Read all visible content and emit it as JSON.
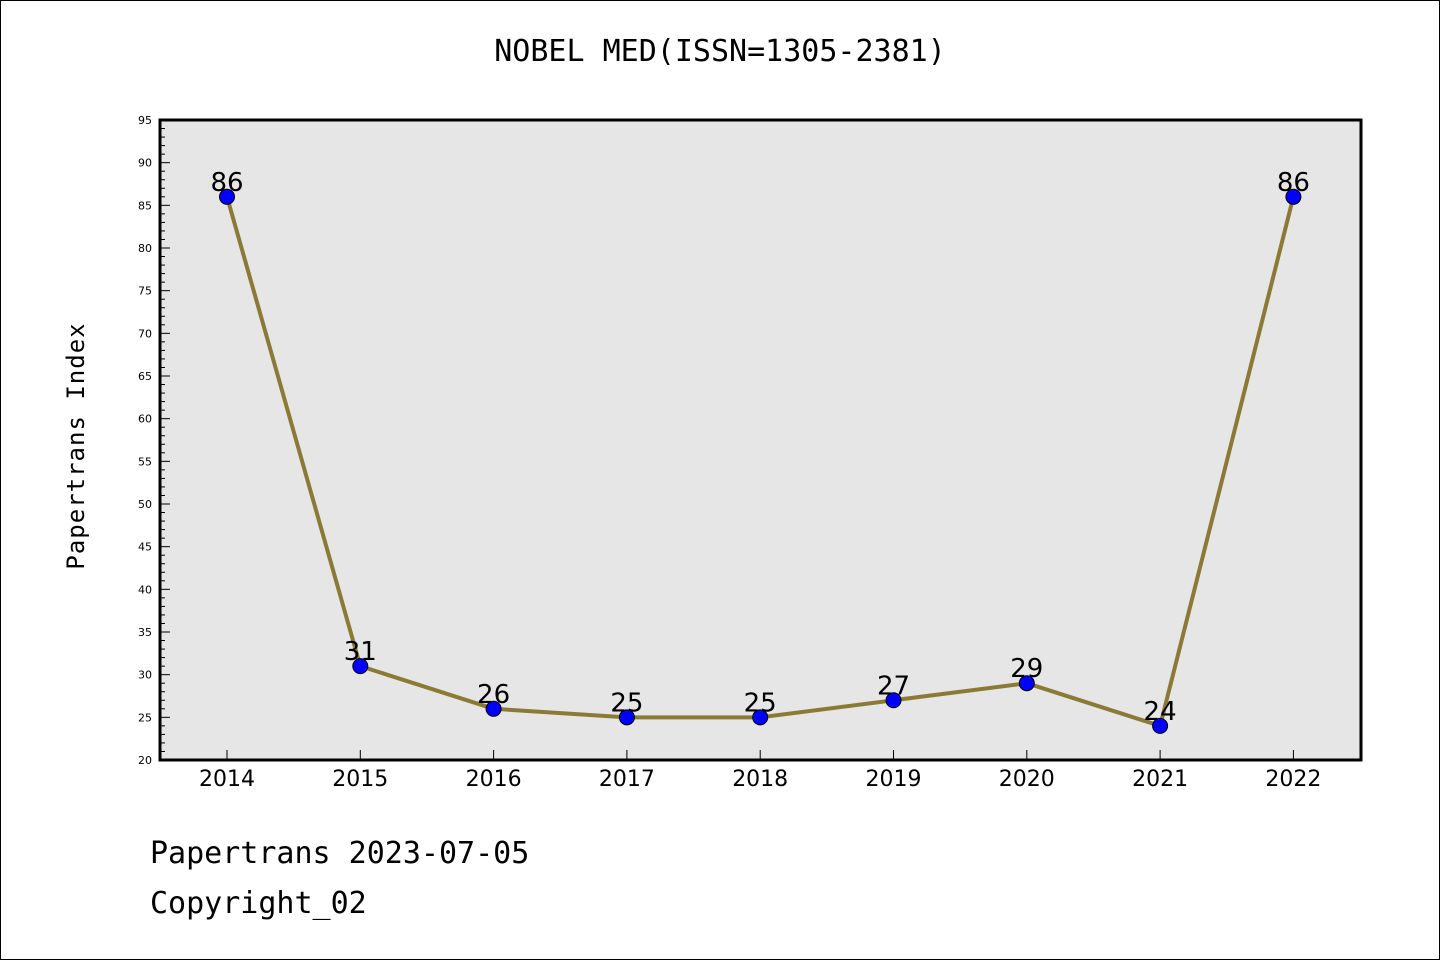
{
  "chart_data": {
    "type": "line",
    "title": "NOBEL MED(ISSN=1305-2381)",
    "xlabel": "",
    "ylabel": "Papertrans Index",
    "categories": [
      "2014",
      "2015",
      "2016",
      "2017",
      "2018",
      "2019",
      "2020",
      "2021",
      "2022"
    ],
    "series": [
      {
        "values": [
          86,
          31,
          26,
          25,
          25,
          27,
          29,
          24,
          86
        ]
      }
    ],
    "data_labels": [
      "86",
      "31",
      "26",
      "25",
      "25",
      "27",
      "29",
      "24",
      "86"
    ],
    "ylim": [
      20,
      95
    ],
    "y_ticks": [
      "20",
      "25",
      "30",
      "35",
      "40",
      "45",
      "50",
      "55",
      "60",
      "65",
      "70",
      "75",
      "80",
      "85",
      "90",
      "95"
    ],
    "y_minor_step": 1,
    "grid": false,
    "plot_background": "#e6e6e6",
    "line_color": "#8b7a35",
    "marker_color": "#0000ff"
  },
  "footer": {
    "line1": "Papertrans 2023-07-05",
    "line2": "Copyright_02"
  }
}
